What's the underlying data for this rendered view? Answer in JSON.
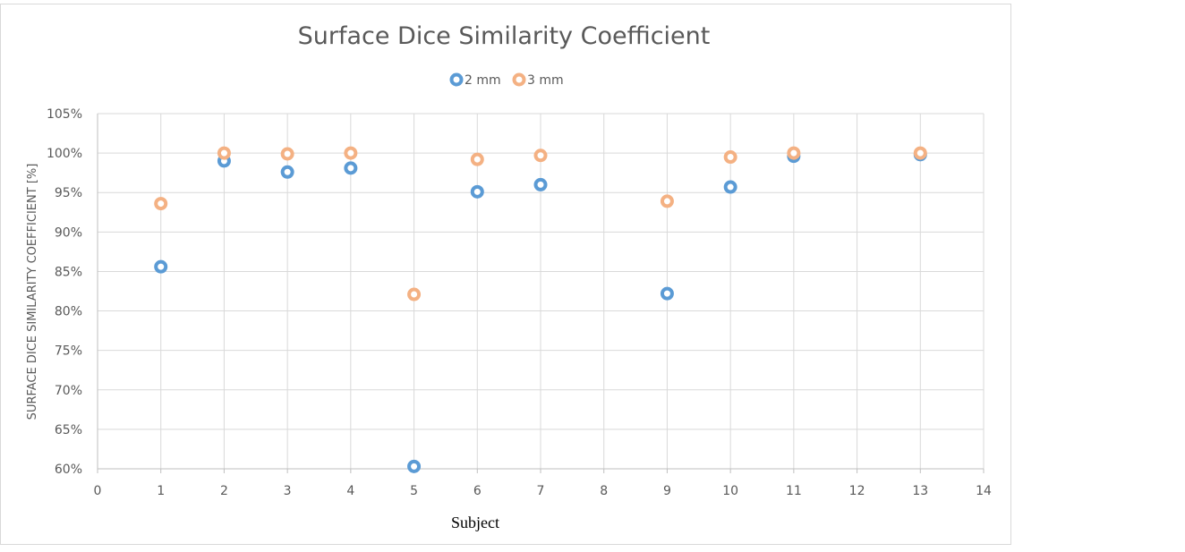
{
  "chart_data": {
    "type": "scatter",
    "title": "Surface Dice Similarity Coefficient",
    "xlabel": "Subject",
    "ylabel": "SURFACE DICE SIMILARITY COEFFICIENT [%]",
    "xlim": [
      0,
      14
    ],
    "ylim": [
      60,
      105
    ],
    "x_ticks": [
      "0",
      "1",
      "2",
      "3",
      "4",
      "5",
      "6",
      "7",
      "8",
      "9",
      "10",
      "11",
      "12",
      "13",
      "14"
    ],
    "y_ticks": [
      "60%",
      "65%",
      "70%",
      "75%",
      "80%",
      "85%",
      "90%",
      "95%",
      "100%",
      "105%"
    ],
    "grid": true,
    "legend_position": "top-center",
    "series": [
      {
        "name": "2 mm",
        "color": "#5b9bd5",
        "x": [
          1,
          2,
          3,
          4,
          5,
          6,
          7,
          9,
          10,
          11,
          13
        ],
        "y": [
          85.6,
          99.0,
          97.6,
          98.1,
          60.3,
          95.1,
          96.0,
          82.2,
          95.7,
          99.6,
          99.8
        ]
      },
      {
        "name": "3 mm",
        "color": "#f4b183",
        "x": [
          1,
          2,
          3,
          4,
          5,
          6,
          7,
          9,
          10,
          11,
          13
        ],
        "y": [
          93.6,
          100.0,
          99.9,
          100.0,
          82.1,
          99.2,
          99.7,
          93.9,
          99.5,
          100.0,
          100.0
        ]
      }
    ]
  }
}
